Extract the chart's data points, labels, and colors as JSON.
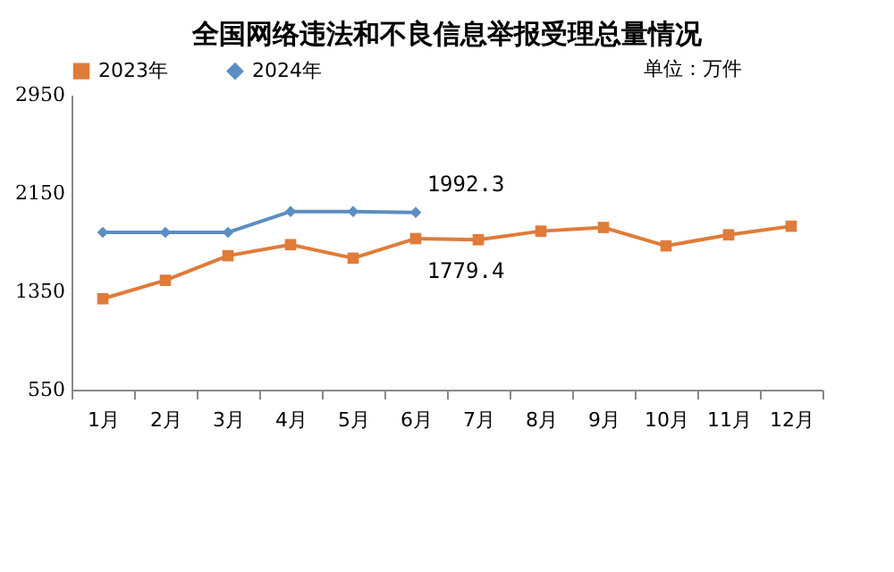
{
  "chart_data": {
    "type": "line",
    "title": "全国网络违法和不良信息举报受理总量情况",
    "categories": [
      "1月",
      "2月",
      "3月",
      "4月",
      "5月",
      "6月",
      "7月",
      "8月",
      "9月",
      "10月",
      "11月",
      "12月"
    ],
    "series": [
      {
        "name": "2023年",
        "color": "#e07b39",
        "marker": "square",
        "values": [
          1290,
          1440,
          1640,
          1730,
          1620,
          1779.4,
          1770,
          1840,
          1870,
          1720,
          1810,
          1880
        ]
      },
      {
        "name": "2024年",
        "color": "#5b8ec2",
        "marker": "diamond",
        "values": [
          1830,
          1830,
          1830,
          2000,
          2000,
          1992.3,
          null,
          null,
          null,
          null,
          null,
          null
        ]
      }
    ],
    "annotations": [
      "单位：万件",
      {
        "text": "1992.3",
        "x": "6月",
        "y": 1992.3
      },
      {
        "text": "1779.4",
        "x": "6月",
        "y": 1779.4
      }
    ],
    "ylim": [
      550,
      2950
    ],
    "yticks": [
      550,
      1350,
      2150,
      2950
    ],
    "grid": false,
    "legend": "top left",
    "line_style": "solid"
  }
}
